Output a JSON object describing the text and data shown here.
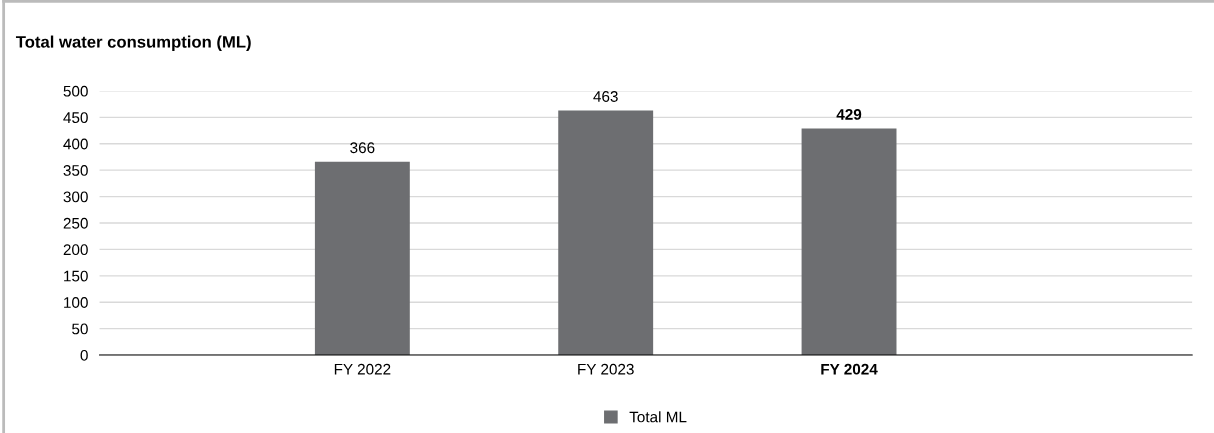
{
  "chart_data": {
    "type": "bar",
    "title": "Total water consumption (ML)",
    "categories": [
      "FY 2022",
      "FY 2023",
      "FY 2024"
    ],
    "series": [
      {
        "name": "Total ML",
        "color": "#6d6e71",
        "values": [
          366,
          463,
          429
        ]
      }
    ],
    "ylim": [
      0,
      500
    ],
    "yticks": [
      0,
      50,
      100,
      150,
      200,
      250,
      300,
      350,
      400,
      450,
      500
    ],
    "grid": "y",
    "legend": "bottom",
    "data_labels": true
  }
}
